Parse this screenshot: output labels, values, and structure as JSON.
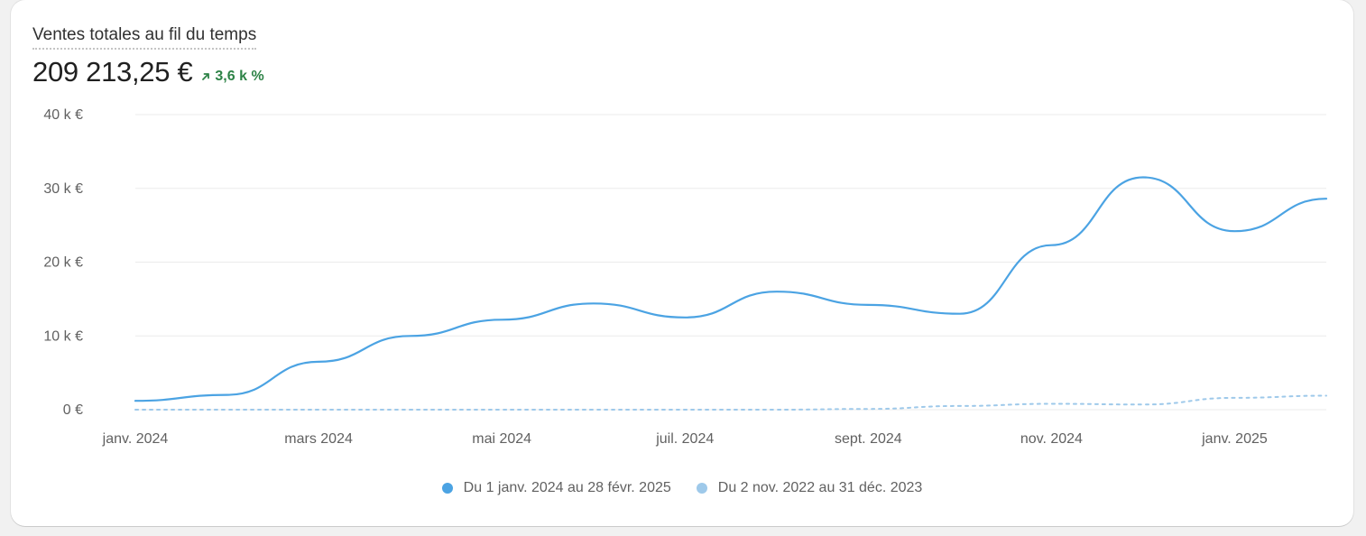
{
  "card": {
    "title": "Ventes totales au fil du temps",
    "total": "209 213,25 €",
    "change": "3,6 k %",
    "change_color": "#2e8347"
  },
  "chart_data": {
    "type": "line",
    "title": "Ventes totales au fil du temps",
    "ylim": [
      0,
      40000
    ],
    "yticks": [
      {
        "value": 0,
        "label": "0 €"
      },
      {
        "value": 10000,
        "label": "10 k €"
      },
      {
        "value": 20000,
        "label": "20 k €"
      },
      {
        "value": 30000,
        "label": "30 k €"
      },
      {
        "value": 40000,
        "label": "40 k €"
      }
    ],
    "xticks": [
      "janv. 2024",
      "mars 2024",
      "mai 2024",
      "juil. 2024",
      "sept. 2024",
      "nov. 2024",
      "janv. 2025"
    ],
    "x": [
      "janv. 2024",
      "févr. 2024",
      "mars 2024",
      "avr. 2024",
      "mai 2024",
      "juin 2024",
      "juil. 2024",
      "août 2024",
      "sept. 2024",
      "oct. 2024",
      "nov. 2024",
      "déc. 2024",
      "janv. 2025",
      "févr. 2025"
    ],
    "grid": true,
    "legend_position": "bottom",
    "series": [
      {
        "name": "Du 1 janv. 2024 au 28 févr. 2025",
        "color": "#4ba3e3",
        "style": "solid",
        "values": [
          1200,
          2000,
          6500,
          10000,
          12200,
          14400,
          12500,
          16000,
          14200,
          13000,
          22300,
          31500,
          24200,
          28600
        ]
      },
      {
        "name": "Du 2 nov. 2022 au 31 déc. 2023",
        "color": "#9ec9ea",
        "style": "dashed",
        "values": [
          0,
          0,
          0,
          0,
          0,
          0,
          0,
          0,
          100,
          500,
          800,
          700,
          1600,
          1900
        ]
      }
    ]
  }
}
